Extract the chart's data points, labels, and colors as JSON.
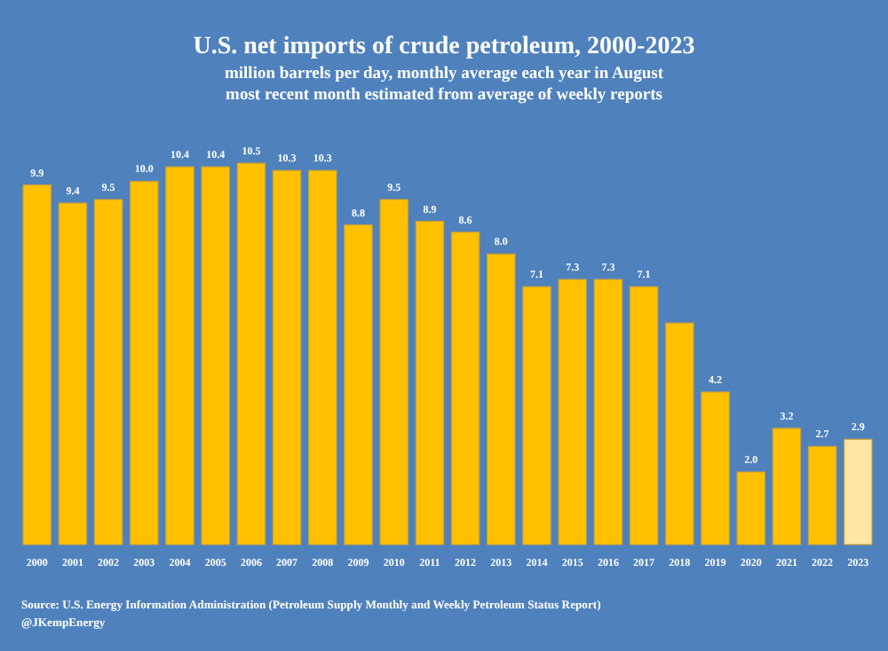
{
  "chart_data": {
    "type": "bar",
    "title": "U.S. net imports of crude petroleum, 2000-2023",
    "subtitle": "million barrels per day, monthly average each year in August\nmost recent month estimated from average of weekly reports",
    "categories": [
      "2000",
      "2001",
      "2002",
      "2003",
      "2004",
      "2005",
      "2006",
      "2007",
      "2008",
      "2009",
      "2010",
      "2011",
      "2012",
      "2013",
      "2014",
      "2015",
      "2016",
      "2017",
      "2018",
      "2019",
      "2020",
      "2021",
      "2022",
      "2023"
    ],
    "values": [
      9.9,
      9.4,
      9.5,
      10.0,
      10.4,
      10.4,
      10.5,
      10.3,
      10.3,
      8.8,
      9.5,
      8.9,
      8.6,
      8.0,
      7.1,
      7.3,
      7.3,
      7.1,
      6.1,
      4.2,
      2.0,
      3.2,
      2.7,
      2.9
    ],
    "value_labels": [
      "9.9",
      "9.4",
      "9.5",
      "10.0",
      "10.4",
      "10.4",
      "10.5",
      "10.3",
      "10.3",
      "8.8",
      "9.5",
      "8.9",
      "8.6",
      "8.0",
      "7.1",
      "7.3",
      "7.3",
      "7.1",
      null,
      "4.2",
      "2.0",
      "3.2",
      "2.7",
      "2.9"
    ],
    "colors": [
      "#ffc000",
      "#ffc000",
      "#ffc000",
      "#ffc000",
      "#ffc000",
      "#ffc000",
      "#ffc000",
      "#ffc000",
      "#ffc000",
      "#ffc000",
      "#ffc000",
      "#ffc000",
      "#ffc000",
      "#ffc000",
      "#ffc000",
      "#ffc000",
      "#ffc000",
      "#ffc000",
      "#ffc000",
      "#ffc000",
      "#ffc000",
      "#ffc000",
      "#ffc000",
      "#ffe8a6"
    ],
    "annotations": [
      "Source: U.S. Energy Information Administration (Petroleum Supply Monthly and Weekly Petroleum Status Report)",
      "@JKempEnergy"
    ]
  }
}
